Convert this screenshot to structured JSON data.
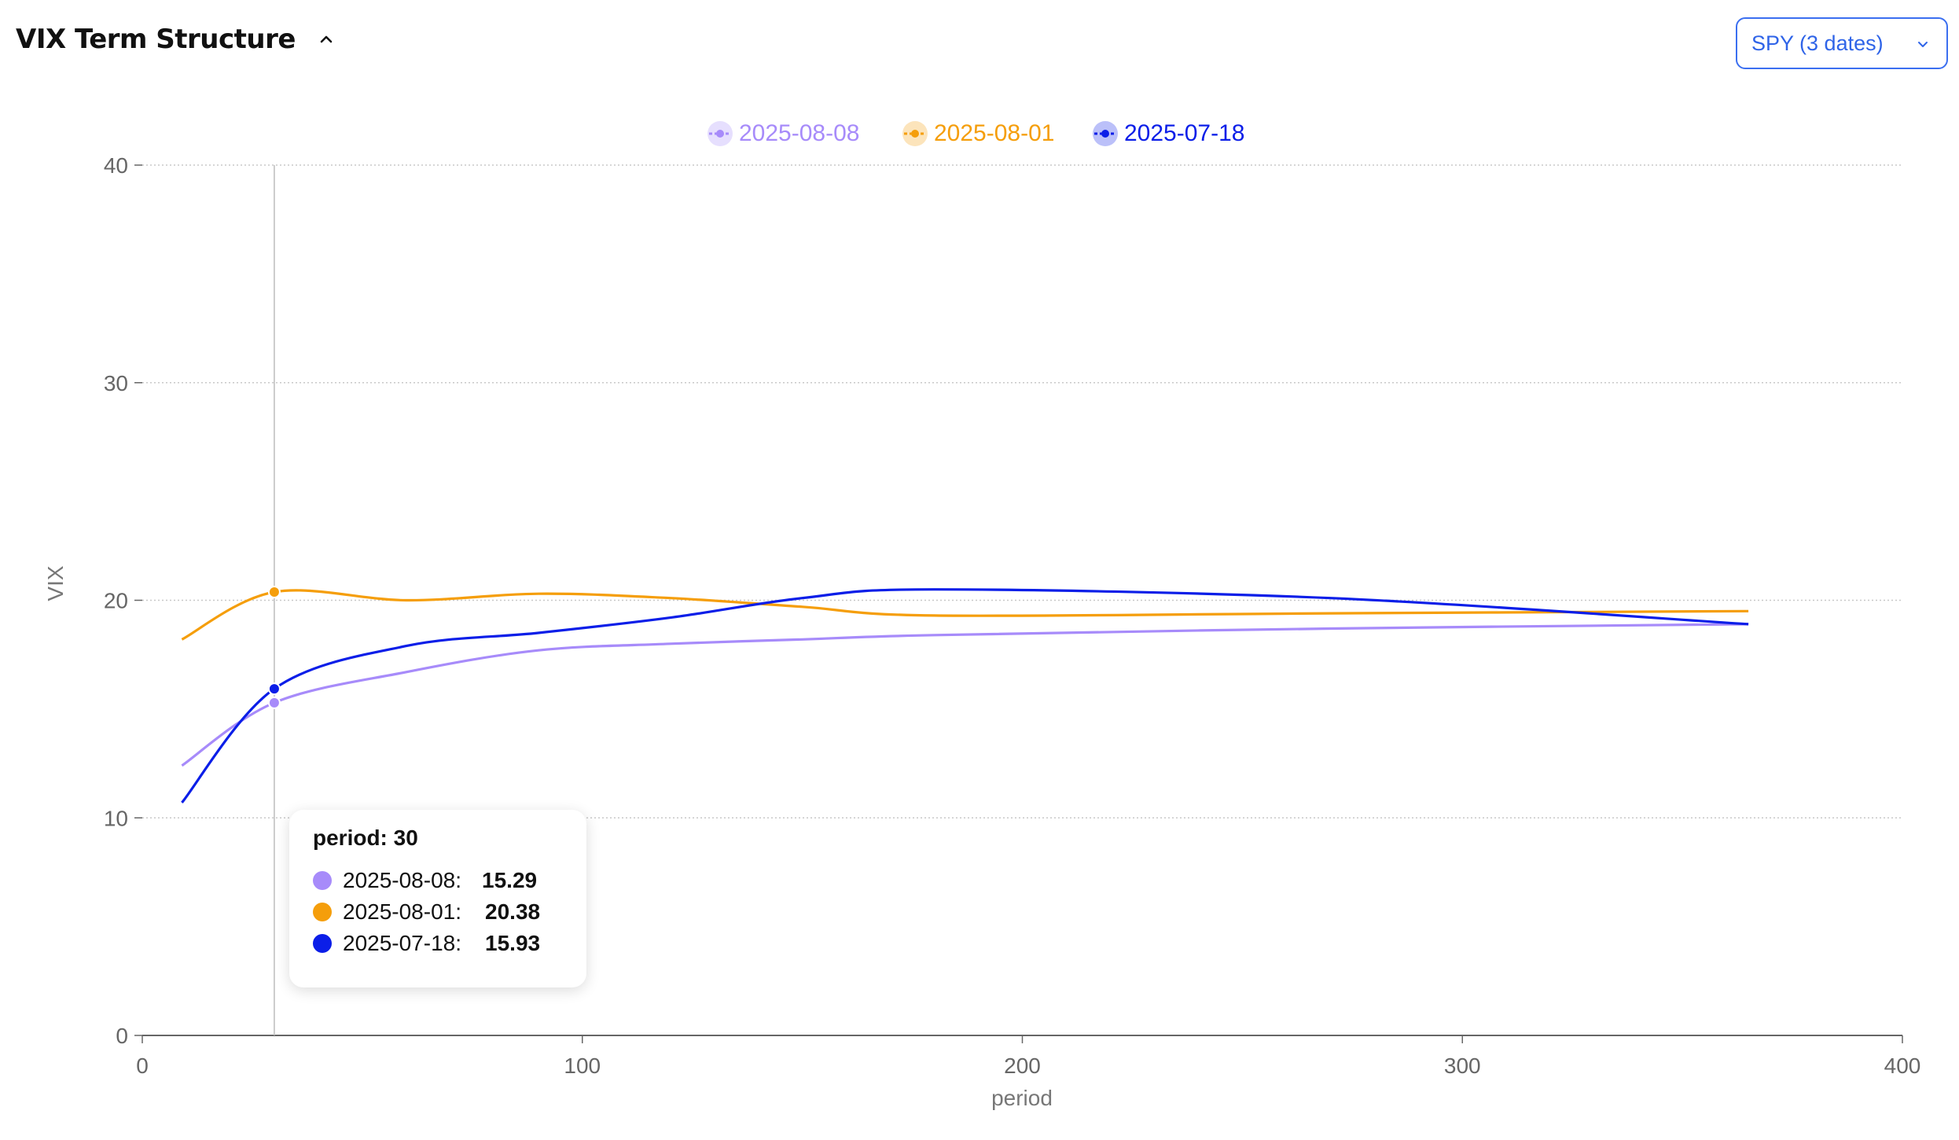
{
  "header": {
    "title": "VIX Term Structure",
    "collapse_icon": "chevron-up-icon"
  },
  "ticker_select": {
    "value": "SPY (3 dates)",
    "icon": "chevron-down-icon"
  },
  "colors": {
    "series_2025_08_08": "#a78bfa",
    "series_2025_08_01": "#f59e0b",
    "series_2025_07_18": "#0b1ee8",
    "select_accent": "#2f64e8"
  },
  "chart_data": {
    "type": "line",
    "title": "",
    "xlabel": "period",
    "ylabel": "VIX",
    "xlim": [
      0,
      400
    ],
    "ylim": [
      0,
      40
    ],
    "xticks": [
      "0",
      "100",
      "200",
      "300",
      "400"
    ],
    "yticks": [
      "0",
      "10",
      "20",
      "30",
      "40"
    ],
    "grid": "horizontal dotted",
    "legend": "top-center",
    "series": [
      {
        "name": "2025-08-08",
        "color": "#a78bfa",
        "points": [
          [
            9,
            12.4
          ],
          [
            30,
            15.29
          ],
          [
            60,
            16.7
          ],
          [
            90,
            17.7
          ],
          [
            120,
            18.0
          ],
          [
            150,
            18.2
          ],
          [
            180,
            18.4
          ],
          [
            270,
            18.7
          ],
          [
            365,
            18.9
          ]
        ]
      },
      {
        "name": "2025-08-01",
        "color": "#f59e0b",
        "points": [
          [
            9,
            18.2
          ],
          [
            30,
            20.38
          ],
          [
            60,
            20.0
          ],
          [
            90,
            20.3
          ],
          [
            120,
            20.1
          ],
          [
            150,
            19.7
          ],
          [
            180,
            19.3
          ],
          [
            270,
            19.4
          ],
          [
            365,
            19.5
          ]
        ]
      },
      {
        "name": "2025-07-18",
        "color": "#0b1ee8",
        "points": [
          [
            9,
            10.7
          ],
          [
            30,
            15.93
          ],
          [
            60,
            17.9
          ],
          [
            90,
            18.5
          ],
          [
            120,
            19.2
          ],
          [
            150,
            20.1
          ],
          [
            180,
            20.5
          ],
          [
            270,
            20.1
          ],
          [
            365,
            18.9
          ]
        ]
      }
    ]
  },
  "tooltip": {
    "title": "period: 30",
    "rows": [
      {
        "label": "2025-08-08:",
        "value": "15.29",
        "color": "#a78bfa"
      },
      {
        "label": "2025-08-01:",
        "value": "20.38",
        "color": "#f59e0b"
      },
      {
        "label": "2025-07-18:",
        "value": "15.93",
        "color": "#0b1ee8"
      }
    ]
  }
}
